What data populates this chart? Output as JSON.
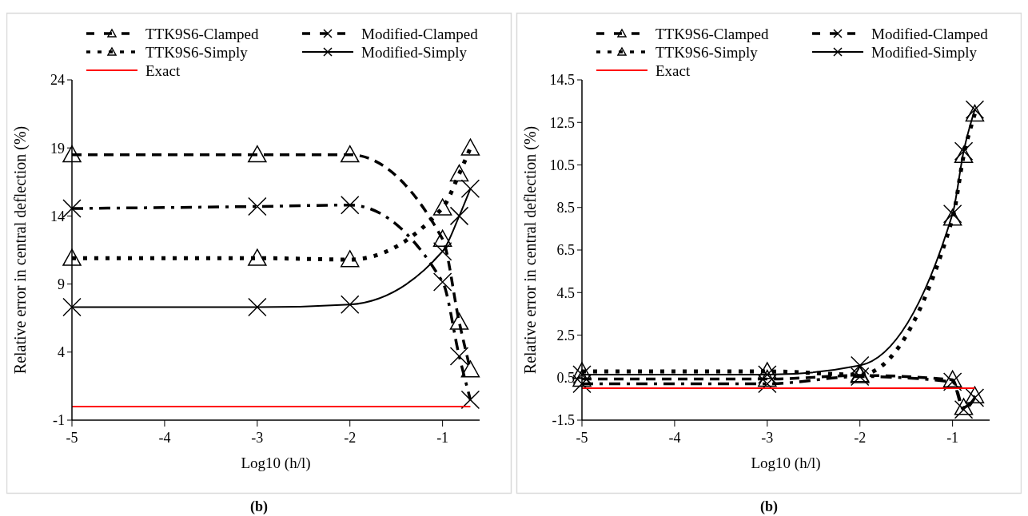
{
  "chart_data": [
    {
      "type": "line",
      "title": "(b)",
      "xlabel": "Log10 (h/l)",
      "ylabel": "Relative error in central deflection (%)",
      "x": [
        -5,
        -3,
        -2,
        -1,
        -0.82,
        -0.7
      ],
      "xlim": [
        -5,
        -0.6
      ],
      "xticks": [
        -5,
        -4,
        -3,
        -2,
        -1
      ],
      "ylim": [
        -1,
        24
      ],
      "yticks": [
        -1,
        4,
        9,
        14,
        19,
        24
      ],
      "legend": "top",
      "series": [
        {
          "name": "TTK9S6-Clamped",
          "color": "#000000",
          "marker": "triangle",
          "line_style": "dashed",
          "values": [
            18.5,
            18.5,
            18.5,
            12.3,
            6.2,
            2.7
          ]
        },
        {
          "name": "Modified-Clamped",
          "color": "#000000",
          "marker": "cross",
          "line_style": "dashdot",
          "values": [
            14.55,
            14.7,
            14.8,
            9.15,
            3.7,
            0.5
          ]
        },
        {
          "name": "TTK9S6-Simply",
          "color": "#000000",
          "marker": "triangle",
          "line_style": "dotted",
          "values": [
            10.9,
            10.9,
            10.8,
            14.6,
            17.1,
            19.0
          ]
        },
        {
          "name": "Modified-Simply",
          "color": "#000000",
          "marker": "cross",
          "line_style": "solid",
          "values": [
            7.3,
            7.3,
            7.5,
            11.4,
            14.0,
            16.0
          ]
        },
        {
          "name": "Exact",
          "color": "#ff0000",
          "marker": "none",
          "line_style": "solid",
          "x": [
            -5,
            -0.7
          ],
          "values": [
            0,
            0
          ]
        }
      ]
    },
    {
      "type": "line",
      "title": "(b)",
      "xlabel": "Log10 (h/l)",
      "ylabel": "Relative error in central deflection (%)",
      "x": [
        -5,
        -3,
        -2,
        -1,
        -0.88,
        -0.76
      ],
      "xlim": [
        -5,
        -0.6
      ],
      "xticks": [
        -5,
        -4,
        -3,
        -2,
        -1
      ],
      "ylim": [
        -1.5,
        14.5
      ],
      "yticks": [
        -1.5,
        0.5,
        2.5,
        4.5,
        6.5,
        8.5,
        10.5,
        12.5,
        14.5
      ],
      "legend": "top",
      "series": [
        {
          "name": "TTK9S6-Clamped",
          "color": "#000000",
          "marker": "triangle",
          "line_style": "dashed",
          "values": [
            0.43,
            0.43,
            0.6,
            0.4,
            -0.9,
            -0.35
          ]
        },
        {
          "name": "Modified-Clamped",
          "color": "#000000",
          "marker": "cross",
          "line_style": "dashdot",
          "values": [
            0.21,
            0.21,
            0.55,
            0.3,
            -1.0,
            -0.45
          ]
        },
        {
          "name": "TTK9S6-Simply",
          "color": "#000000",
          "marker": "triangle",
          "line_style": "dotted",
          "values": [
            0.79,
            0.79,
            0.64,
            8.0,
            10.95,
            12.9
          ]
        },
        {
          "name": "Modified-Simply",
          "color": "#000000",
          "marker": "cross",
          "line_style": "solid",
          "values": [
            0.64,
            0.64,
            1.07,
            8.2,
            11.15,
            13.1
          ]
        },
        {
          "name": "Exact",
          "color": "#ff0000",
          "marker": "none",
          "line_style": "solid",
          "x": [
            -5,
            -0.76
          ],
          "values": [
            0,
            0
          ]
        }
      ]
    }
  ]
}
